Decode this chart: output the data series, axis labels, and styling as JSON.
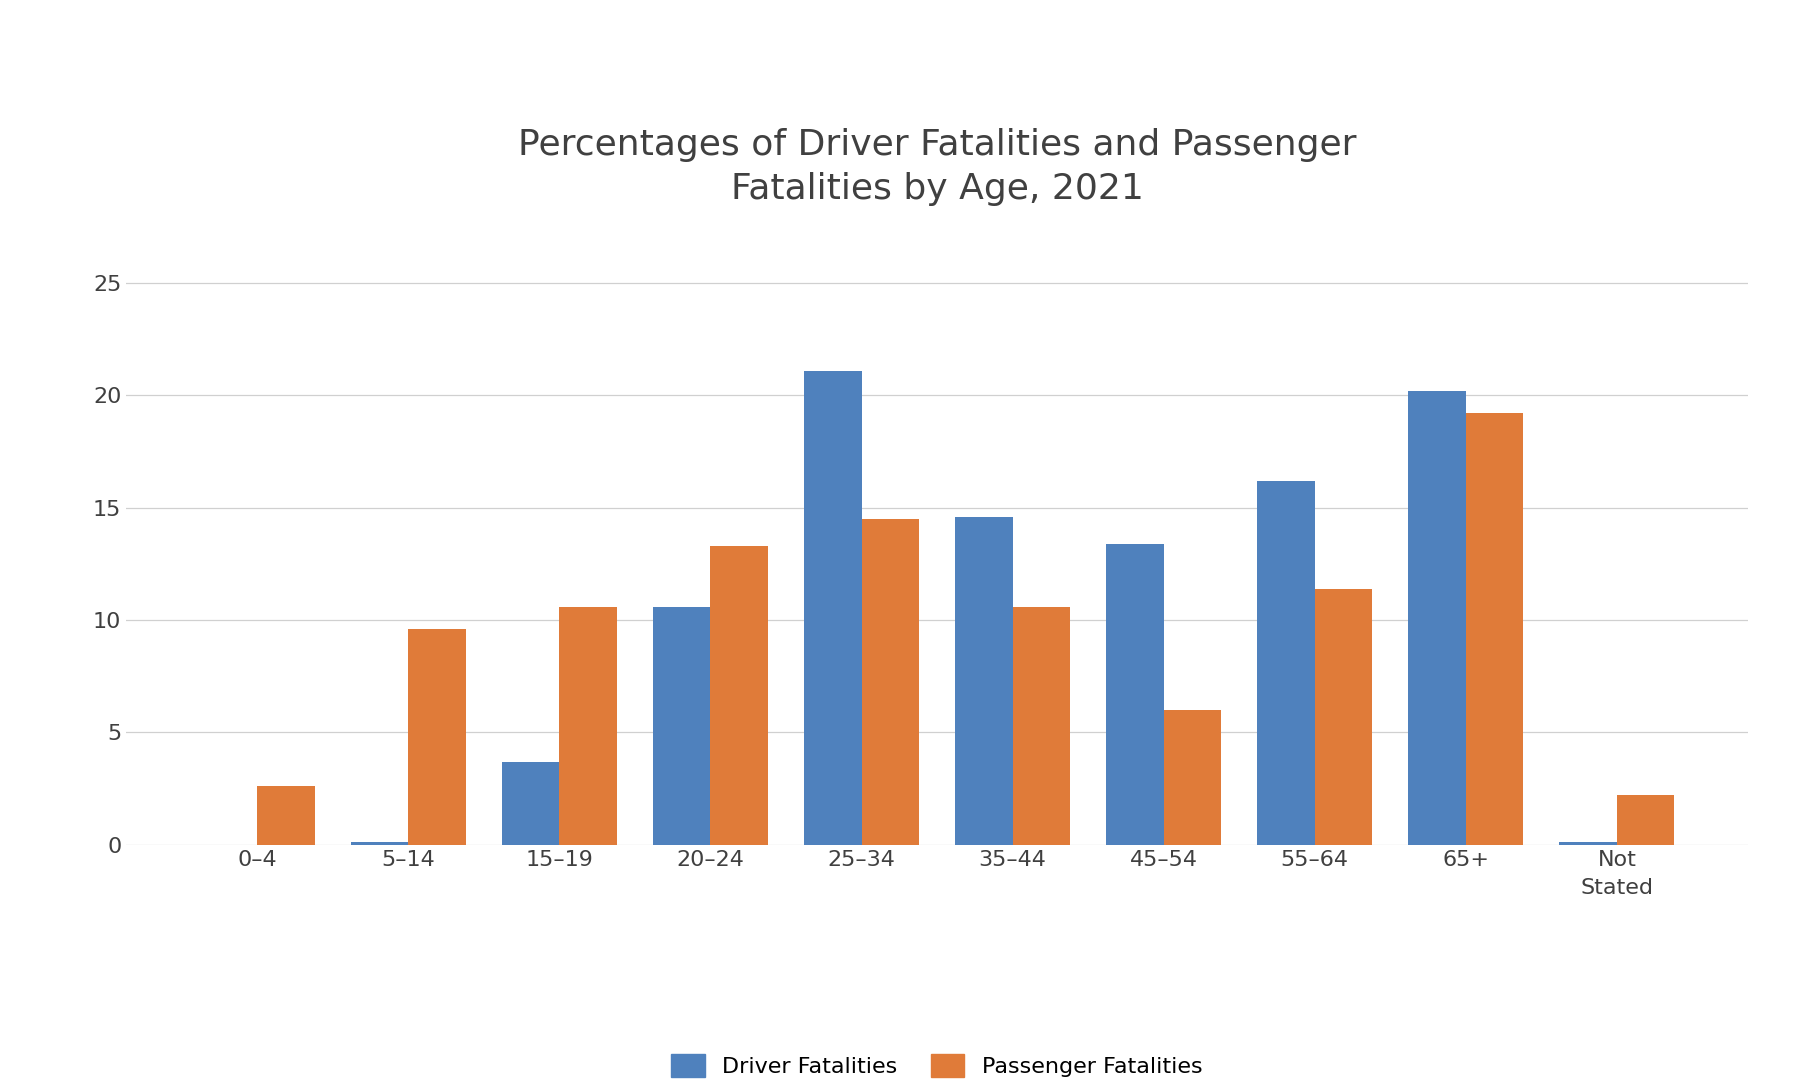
{
  "title": "Percentages of Driver Fatalities and Passenger\nFatalities by Age, 2021",
  "categories": [
    "0–4",
    "5–14",
    "15–19",
    "20–24",
    "25–34",
    "35–44",
    "45–54",
    "55–64",
    "65+",
    "Not\nStated"
  ],
  "driver_values": [
    0.0,
    0.1,
    3.7,
    10.6,
    21.1,
    14.6,
    13.4,
    16.2,
    20.2,
    0.1
  ],
  "passenger_values": [
    2.6,
    9.6,
    10.6,
    13.3,
    14.5,
    10.6,
    6.0,
    11.4,
    19.2,
    2.2
  ],
  "driver_color": "#4f81bd",
  "passenger_color": "#e07b39",
  "ylim": [
    0,
    27
  ],
  "yticks": [
    0,
    5,
    10,
    15,
    20,
    25
  ],
  "bar_width": 0.38,
  "title_fontsize": 26,
  "tick_fontsize": 16,
  "legend_fontsize": 16,
  "background_color": "#ffffff",
  "grid_color": "#d0d0d0",
  "title_color": "#404040",
  "tick_color": "#404040",
  "legend_label_driver": "Driver Fatalities",
  "legend_label_passenger": "Passenger Fatalities"
}
